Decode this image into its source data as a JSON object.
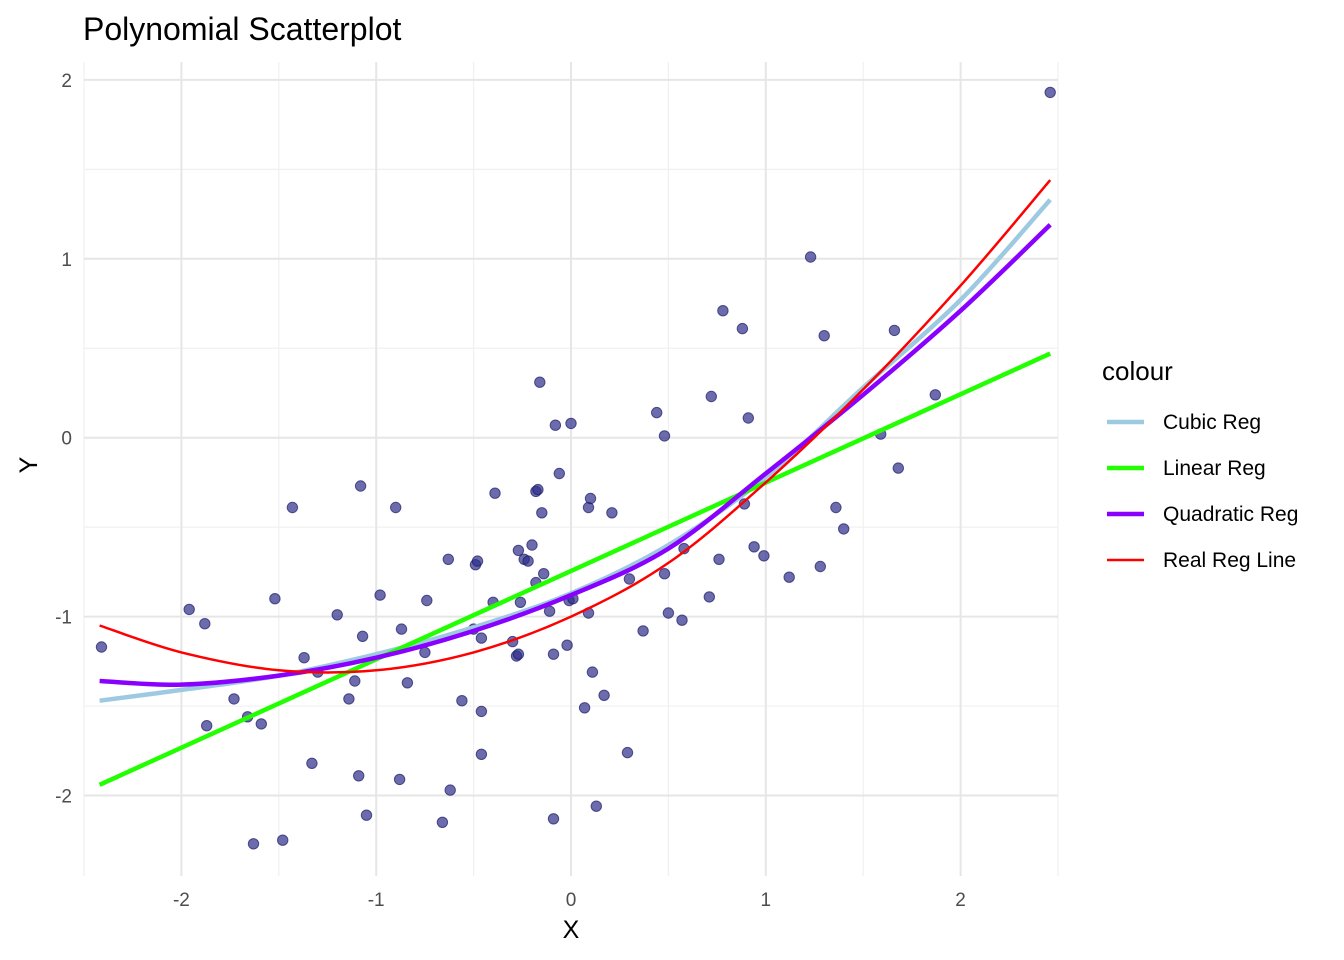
{
  "chart_data": {
    "type": "scatter",
    "title": "Polynomial Scatterplot",
    "xlabel": "X",
    "ylabel": "Y",
    "xlim": [
      -2.5,
      2.5
    ],
    "ylim": [
      -2.45,
      2.1
    ],
    "xticks": [
      -2,
      -1,
      0,
      1,
      2
    ],
    "yticks": [
      -2,
      -1,
      0,
      1,
      2
    ],
    "grid": true,
    "legend": {
      "title": "colour",
      "position": "right",
      "entries": [
        {
          "label": "Cubic Reg",
          "color": "#9ecae1"
        },
        {
          "label": "Linear Reg",
          "color": "#22ff00"
        },
        {
          "label": "Quadratic Reg",
          "color": "#8a00ff"
        },
        {
          "label": "Real Reg Line",
          "color": "#ff0000"
        }
      ]
    },
    "points_color": "#2e2e8a",
    "points": [
      [
        -2.41,
        -1.17
      ],
      [
        -1.96,
        -0.96
      ],
      [
        -1.88,
        -1.04
      ],
      [
        -1.87,
        -1.61
      ],
      [
        -1.73,
        -1.46
      ],
      [
        -1.66,
        -1.56
      ],
      [
        -1.63,
        -2.27
      ],
      [
        -1.59,
        -1.6
      ],
      [
        -1.52,
        -0.9
      ],
      [
        -1.48,
        -2.25
      ],
      [
        -1.43,
        -0.39
      ],
      [
        -1.37,
        -1.23
      ],
      [
        -1.33,
        -1.82
      ],
      [
        -1.3,
        -1.31
      ],
      [
        -1.2,
        -0.99
      ],
      [
        -1.14,
        -1.46
      ],
      [
        -1.11,
        -1.36
      ],
      [
        -1.09,
        -1.89
      ],
      [
        -1.08,
        -0.27
      ],
      [
        -1.07,
        -1.11
      ],
      [
        -1.05,
        -2.11
      ],
      [
        -0.98,
        -0.88
      ],
      [
        -0.9,
        -0.39
      ],
      [
        -0.88,
        -1.91
      ],
      [
        -0.87,
        -1.07
      ],
      [
        -0.84,
        -1.37
      ],
      [
        -0.75,
        -1.2
      ],
      [
        -0.74,
        -0.91
      ],
      [
        -0.66,
        -2.15
      ],
      [
        -0.63,
        -0.68
      ],
      [
        -0.62,
        -1.97
      ],
      [
        -0.56,
        -1.47
      ],
      [
        -0.5,
        -1.07
      ],
      [
        -0.49,
        -0.71
      ],
      [
        -0.48,
        -0.69
      ],
      [
        -0.46,
        -1.12
      ],
      [
        -0.46,
        -1.53
      ],
      [
        -0.46,
        -1.77
      ],
      [
        -0.4,
        -0.92
      ],
      [
        -0.39,
        -0.31
      ],
      [
        -0.3,
        -1.14
      ],
      [
        -0.28,
        -1.22
      ],
      [
        -0.27,
        -1.21
      ],
      [
        -0.27,
        -0.63
      ],
      [
        -0.26,
        -0.92
      ],
      [
        -0.24,
        -0.68
      ],
      [
        -0.22,
        -0.69
      ],
      [
        -0.2,
        -0.6
      ],
      [
        -0.18,
        -0.3
      ],
      [
        -0.18,
        -0.81
      ],
      [
        -0.17,
        -0.29
      ],
      [
        -0.16,
        0.31
      ],
      [
        -0.15,
        -0.42
      ],
      [
        -0.14,
        -0.76
      ],
      [
        -0.11,
        -0.97
      ],
      [
        -0.09,
        -1.21
      ],
      [
        -0.09,
        -2.13
      ],
      [
        -0.08,
        0.07
      ],
      [
        -0.06,
        -0.2
      ],
      [
        -0.02,
        -1.16
      ],
      [
        -0.01,
        -0.91
      ],
      [
        0.0,
        0.08
      ],
      [
        0.01,
        -0.9
      ],
      [
        0.07,
        -1.51
      ],
      [
        0.09,
        -0.98
      ],
      [
        0.09,
        -0.39
      ],
      [
        0.1,
        -0.34
      ],
      [
        0.11,
        -1.31
      ],
      [
        0.13,
        -2.06
      ],
      [
        0.17,
        -1.44
      ],
      [
        0.21,
        -0.42
      ],
      [
        0.29,
        -1.76
      ],
      [
        0.3,
        -0.79
      ],
      [
        0.37,
        -1.08
      ],
      [
        0.44,
        0.14
      ],
      [
        0.48,
        0.01
      ],
      [
        0.48,
        -0.76
      ],
      [
        0.5,
        -0.98
      ],
      [
        0.57,
        -1.02
      ],
      [
        0.58,
        -0.62
      ],
      [
        0.71,
        -0.89
      ],
      [
        0.72,
        0.23
      ],
      [
        0.76,
        -0.68
      ],
      [
        0.78,
        0.71
      ],
      [
        0.88,
        0.61
      ],
      [
        0.89,
        -0.37
      ],
      [
        0.91,
        0.11
      ],
      [
        0.94,
        -0.61
      ],
      [
        0.99,
        -0.66
      ],
      [
        1.12,
        -0.78
      ],
      [
        1.23,
        1.01
      ],
      [
        1.28,
        -0.72
      ],
      [
        1.3,
        0.57
      ],
      [
        1.36,
        -0.39
      ],
      [
        1.4,
        -0.51
      ],
      [
        1.59,
        0.02
      ],
      [
        1.66,
        0.6
      ],
      [
        1.68,
        -0.17
      ],
      [
        1.87,
        0.24
      ],
      [
        2.46,
        1.93
      ]
    ],
    "series": [
      {
        "name": "Cubic Reg",
        "color": "#9ecae1",
        "width": 4.5,
        "x": [
          -2.42,
          -2.0,
          -1.5,
          -1.0,
          -0.5,
          0.0,
          0.5,
          1.0,
          1.5,
          2.0,
          2.46
        ],
        "y": [
          -1.47,
          -1.41,
          -1.33,
          -1.21,
          -1.06,
          -0.87,
          -0.6,
          -0.22,
          0.28,
          0.77,
          1.33
        ]
      },
      {
        "name": "Linear Reg",
        "color": "#22ff00",
        "width": 4.5,
        "x": [
          -2.42,
          2.46
        ],
        "y": [
          -1.94,
          0.47
        ]
      },
      {
        "name": "Quadratic Reg",
        "color": "#8a00ff",
        "width": 4.5,
        "x": [
          -2.42,
          -2.0,
          -1.5,
          -1.0,
          -0.5,
          0.0,
          0.5,
          1.0,
          1.5,
          2.0,
          2.46
        ],
        "y": [
          -1.36,
          -1.38,
          -1.33,
          -1.23,
          -1.08,
          -0.88,
          -0.62,
          -0.2,
          0.24,
          0.71,
          1.19
        ]
      },
      {
        "name": "Real Reg Line",
        "color": "#ff0000",
        "width": 2.5,
        "x": [
          -2.42,
          -2.0,
          -1.5,
          -1.0,
          -0.5,
          0.0,
          0.5,
          1.0,
          1.5,
          2.0,
          2.46
        ],
        "y": [
          -1.05,
          -1.2,
          -1.3,
          -1.3,
          -1.2,
          -1.0,
          -0.7,
          -0.25,
          0.27,
          0.85,
          1.44
        ]
      }
    ]
  }
}
